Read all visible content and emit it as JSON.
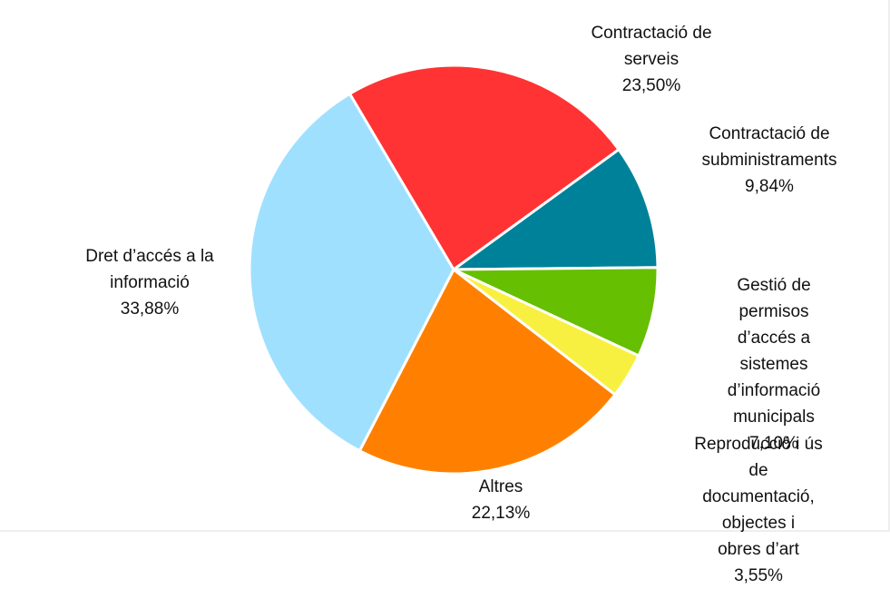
{
  "chart_data": {
    "type": "pie",
    "categories": [
      "Contractació de\nserveis",
      "Contractació de\nsubministraments",
      "Gestió de permisos\nd’accés a sistemes\nd’informació municipals",
      "Reproducció i ús de\ndocumentació, objectes i\nobres d’art",
      "Altres",
      "Dret d’accés a la\ninformació"
    ],
    "values": [
      23.5,
      9.84,
      7.1,
      3.55,
      22.13,
      33.88
    ],
    "value_labels": [
      "23,50%",
      "9,84%",
      "7,10%",
      "3,55%",
      "22,13%",
      "33,88%"
    ],
    "colors": [
      "#ff3333",
      "#00819a",
      "#66bf00",
      "#f8f040",
      "#ff8000",
      "#a0e0ff"
    ]
  }
}
